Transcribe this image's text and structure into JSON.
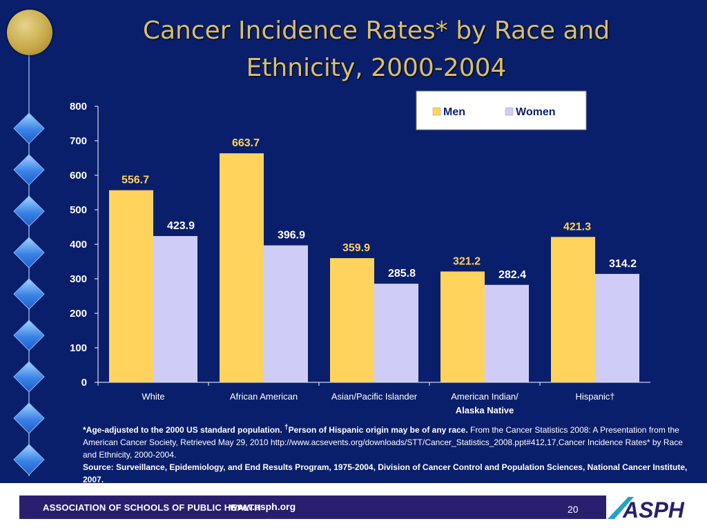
{
  "title": {
    "line1": "Cancer Incidence Rates* by Race and",
    "line2": "Ethnicity, 2000-2004"
  },
  "colors": {
    "background": "#0a1f6b",
    "men": "#ffd35c",
    "women": "#cfcdf7",
    "title": "#d8bf6a",
    "men_label": "#ffd35c",
    "women_label": "#ffffff"
  },
  "chart_data": {
    "type": "bar",
    "categories": [
      "White",
      "African American",
      "Asian/Pacific Islander",
      "American Indian/\nAlaska Native",
      "Hispanic†"
    ],
    "series": [
      {
        "name": "Men",
        "values": [
          556.7,
          663.7,
          359.9,
          321.2,
          421.3
        ]
      },
      {
        "name": "Women",
        "values": [
          423.9,
          396.9,
          285.8,
          282.4,
          314.2
        ]
      }
    ],
    "data_labels": {
      "Men": [
        "556.7",
        "663.7",
        "359.9",
        "321.2",
        "421.3"
      ],
      "Women": [
        "423.9",
        "396.9",
        "285.8",
        "282.4",
        "314.2"
      ]
    },
    "ylim": [
      0,
      800
    ],
    "yticks": [
      0,
      100,
      200,
      300,
      400,
      500,
      600,
      700,
      800
    ],
    "xlabel": "",
    "ylabel": "",
    "legend": {
      "placement": "top-right",
      "entries": [
        "Men",
        "Women"
      ]
    },
    "grid": false
  },
  "footnote": {
    "bold1": "*Age-adjusted to the 2000 US standard population. ",
    "dagger": "†",
    "bold2": "Person of Hispanic origin may be of any race.",
    "normal": " From the Cancer Statistics 2008: A Presentation from the American Cancer Society, Retrieved May 29, 2010 http://www.acsevents.org/downloads/STT/Cancer_Statistics_2008.ppt#412,17,Cancer Incidence Rates* by Race and Ethnicity, 2000-2004.",
    "source": "Source: Surveillance, Epidemiology, and End Results Program, 1975-2004, Division of Cancer Control and Population Sciences, National Cancer Institute, 2007."
  },
  "footer": {
    "org": "ASSOCIATION OF SCHOOLS OF PUBLIC HEALTH",
    "url": "www.asph.org",
    "page": "20",
    "logo_text": "ASPH"
  }
}
